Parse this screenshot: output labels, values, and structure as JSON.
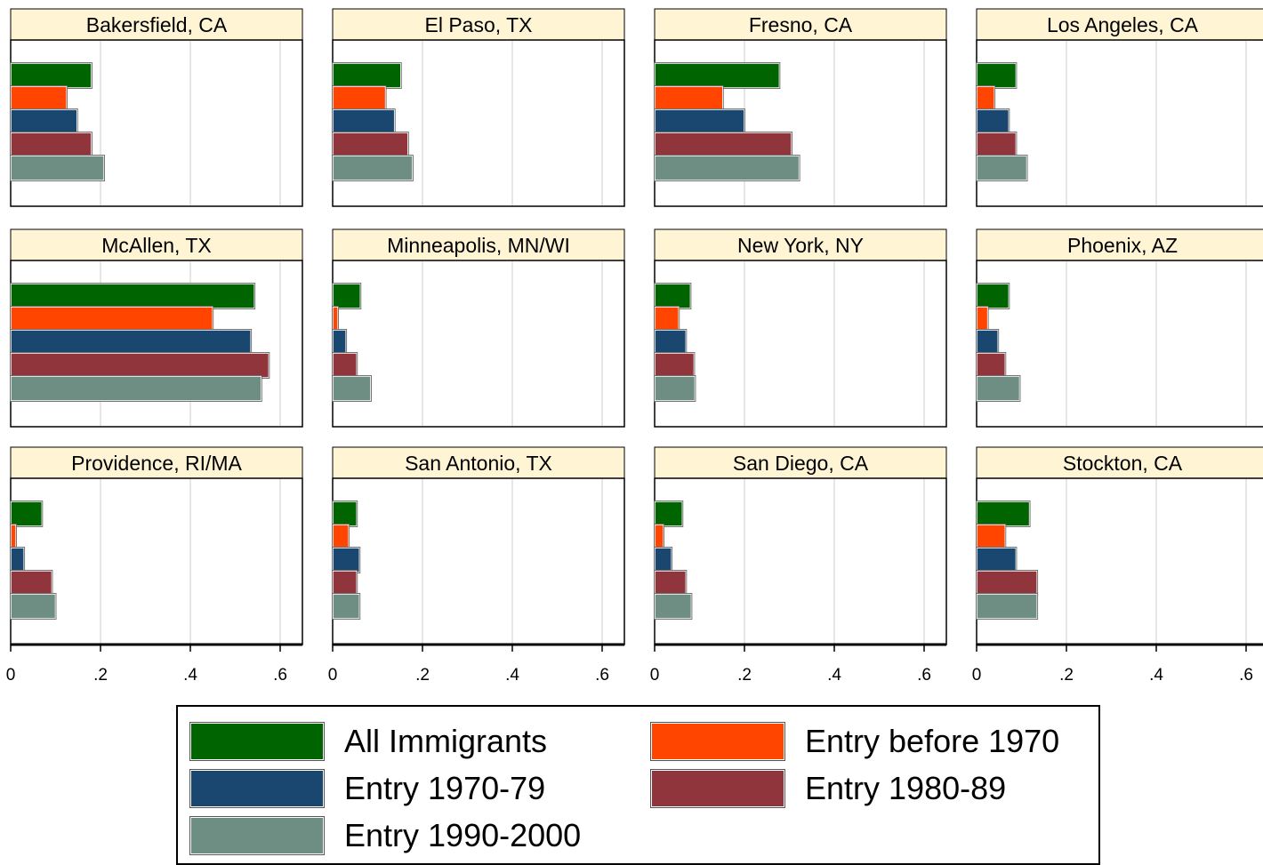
{
  "colors": {
    "all_immigrants": "#006400",
    "entry_before_1970": "#ff4500",
    "entry_1970_79": "#1a476f",
    "entry_1980_89": "#90353b",
    "entry_1990_2000": "#6e8e84",
    "panel_header_bg": "#fff5d5",
    "grid": "#dddddd"
  },
  "chart_data": {
    "type": "bar",
    "orientation": "horizontal",
    "xlim": [
      0,
      0.65
    ],
    "xticks": [
      "0",
      ".2",
      ".4",
      ".6"
    ],
    "xtick_values": [
      0,
      0.2,
      0.4,
      0.6
    ],
    "grid": true,
    "legend_position": "bottom",
    "series": [
      {
        "name": "All Immigrants",
        "color_key": "all_immigrants"
      },
      {
        "name": "Entry before 1970",
        "color_key": "entry_before_1970"
      },
      {
        "name": "Entry 1970-79",
        "color_key": "entry_1970_79"
      },
      {
        "name": "Entry 1980-89",
        "color_key": "entry_1980_89"
      },
      {
        "name": "Entry 1990-2000",
        "color_key": "entry_1990_2000"
      }
    ],
    "bar_order": [
      "All Immigrants",
      "Entry before 1970",
      "Entry 1970-79",
      "Entry 1980-89",
      "Entry 1990-2000"
    ],
    "panels": [
      {
        "title": "Bakersfield, CA",
        "values": [
          0.18,
          0.125,
          0.148,
          0.18,
          0.208
        ]
      },
      {
        "title": "El Paso, TX",
        "values": [
          0.152,
          0.118,
          0.138,
          0.168,
          0.178
        ]
      },
      {
        "title": "Fresno, CA",
        "values": [
          0.278,
          0.152,
          0.2,
          0.305,
          0.322
        ]
      },
      {
        "title": "Los Angeles, CA",
        "values": [
          0.088,
          0.04,
          0.072,
          0.088,
          0.112
        ]
      },
      {
        "title": "McAllen, TX",
        "values": [
          0.543,
          0.45,
          0.535,
          0.575,
          0.558
        ]
      },
      {
        "title": "Minneapolis, MN/WI",
        "values": [
          0.062,
          0.012,
          0.03,
          0.054,
          0.085
        ]
      },
      {
        "title": "New York, NY",
        "values": [
          0.08,
          0.054,
          0.07,
          0.088,
          0.09
        ]
      },
      {
        "title": "Phoenix, AZ",
        "values": [
          0.072,
          0.025,
          0.048,
          0.064,
          0.096
        ]
      },
      {
        "title": "Providence, RI/MA",
        "values": [
          0.07,
          0.012,
          0.03,
          0.092,
          0.1
        ]
      },
      {
        "title": "San Antonio, TX",
        "values": [
          0.054,
          0.036,
          0.06,
          0.054,
          0.06
        ]
      },
      {
        "title": "San Diego, CA",
        "values": [
          0.062,
          0.02,
          0.038,
          0.07,
          0.082
        ]
      },
      {
        "title": "Stockton, CA",
        "values": [
          0.118,
          0.064,
          0.088,
          0.135,
          0.135
        ]
      }
    ]
  },
  "legend": {
    "items": [
      {
        "label": "All Immigrants",
        "color_key": "all_immigrants"
      },
      {
        "label": "Entry before 1970",
        "color_key": "entry_before_1970"
      },
      {
        "label": "Entry 1970-79",
        "color_key": "entry_1970_79"
      },
      {
        "label": "Entry 1980-89",
        "color_key": "entry_1980_89"
      },
      {
        "label": "Entry 1990-2000",
        "color_key": "entry_1990_2000"
      }
    ]
  }
}
